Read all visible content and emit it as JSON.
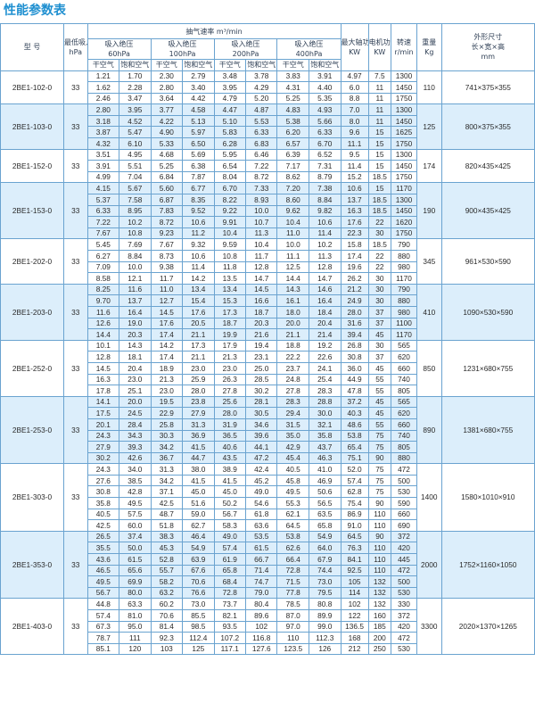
{
  "page_title": "性能参数表",
  "header": {
    "model": "型 号",
    "min_pressure": "最低吸入绝压",
    "min_pressure_unit": "hPa",
    "suction_title": "抽气速率 m³/min",
    "pressure_groups": [
      {
        "label": "吸入绝压",
        "value": "60hPa"
      },
      {
        "label": "吸入绝压",
        "value": "100hPa"
      },
      {
        "label": "吸入绝压",
        "value": "200hPa"
      },
      {
        "label": "吸入绝压",
        "value": "400hPa"
      }
    ],
    "sub_dry": "干空气",
    "sub_sat": "饱和空气",
    "shaft_power": "最大轴功率",
    "shaft_power_unit": "KW",
    "motor_power": "电机功率",
    "motor_power_unit": "KW",
    "speed": "转速",
    "speed_unit": "r/min",
    "weight": "重量",
    "weight_unit": "Kg",
    "dims": "外形尺寸",
    "dims_sub": "长×宽×高",
    "dims_unit": "mm"
  },
  "models": [
    {
      "name": "2BE1-102-0",
      "min_pressure": "33",
      "weight": "110",
      "dims": "741×375×355",
      "rows": [
        [
          "1.21",
          "1.70",
          "2.30",
          "2.79",
          "3.48",
          "3.78",
          "3.83",
          "3.91",
          "4.97",
          "7.5",
          "1300"
        ],
        [
          "1.62",
          "2.28",
          "2.80",
          "3.40",
          "3.95",
          "4.29",
          "4.31",
          "4.40",
          "6.0",
          "11",
          "1450"
        ],
        [
          "2.46",
          "3.47",
          "3.64",
          "4.42",
          "4.79",
          "5.20",
          "5.25",
          "5.35",
          "8.8",
          "11",
          "1750"
        ]
      ]
    },
    {
      "name": "2BE1-103-0",
      "min_pressure": "33",
      "weight": "125",
      "dims": "800×375×355",
      "rows": [
        [
          "2.80",
          "3.95",
          "3.77",
          "4.58",
          "4.47",
          "4.87",
          "4.83",
          "4.93",
          "7.0",
          "11",
          "1300"
        ],
        [
          "3.18",
          "4.52",
          "4.22",
          "5.13",
          "5.10",
          "5.53",
          "5.38",
          "5.66",
          "8.0",
          "11",
          "1450"
        ],
        [
          "3.87",
          "5.47",
          "4.90",
          "5.97",
          "5.83",
          "6.33",
          "6.20",
          "6.33",
          "9.6",
          "15",
          "1625"
        ],
        [
          "4.32",
          "6.10",
          "5.33",
          "6.50",
          "6.28",
          "6.83",
          "6.57",
          "6.70",
          "11.1",
          "15",
          "1750"
        ]
      ]
    },
    {
      "name": "2BE1-152-0",
      "min_pressure": "33",
      "weight": "174",
      "dims": "820×435×425",
      "rows": [
        [
          "3.51",
          "4.95",
          "4.68",
          "5.69",
          "5.95",
          "6.46",
          "6.39",
          "6.52",
          "9.5",
          "15",
          "1300"
        ],
        [
          "3.91",
          "5.51",
          "5.25",
          "6.38",
          "6.54",
          "7.22",
          "7.17",
          "7.31",
          "11.4",
          "15",
          "1450"
        ],
        [
          "4.99",
          "7.04",
          "6.84",
          "7.87",
          "8.04",
          "8.72",
          "8.62",
          "8.79",
          "15.2",
          "18.5",
          "1750"
        ]
      ]
    },
    {
      "name": "2BE1-153-0",
      "min_pressure": "33",
      "weight": "190",
      "dims": "900×435×425",
      "rows": [
        [
          "4.15",
          "5.67",
          "5.60",
          "6.77",
          "6.70",
          "7.33",
          "7.20",
          "7.38",
          "10.6",
          "15",
          "1170"
        ],
        [
          "5.37",
          "7.58",
          "6.87",
          "8.35",
          "8.22",
          "8.93",
          "8.60",
          "8.84",
          "13.7",
          "18.5",
          "1300"
        ],
        [
          "6.33",
          "8.95",
          "7.83",
          "9.52",
          "9.22",
          "10.0",
          "9.62",
          "9.82",
          "16.3",
          "18.5",
          "1450"
        ],
        [
          "7.22",
          "10.2",
          "8.72",
          "10.6",
          "9.91",
          "10.7",
          "10.4",
          "10.6",
          "17.6",
          "22",
          "1620"
        ],
        [
          "7.67",
          "10.8",
          "9.23",
          "11.2",
          "10.4",
          "11.3",
          "11.0",
          "11.4",
          "22.3",
          "30",
          "1750"
        ]
      ]
    },
    {
      "name": "2BE1-202-0",
      "min_pressure": "33",
      "weight": "345",
      "dims": "961×530×590",
      "rows": [
        [
          "5.45",
          "7.69",
          "7.67",
          "9.32",
          "9.59",
          "10.4",
          "10.0",
          "10.2",
          "15.8",
          "18.5",
          "790"
        ],
        [
          "6.27",
          "8.84",
          "8.73",
          "10.6",
          "10.8",
          "11.7",
          "11.1",
          "11.3",
          "17.4",
          "22",
          "880"
        ],
        [
          "7.09",
          "10.0",
          "9.38",
          "11.4",
          "11.8",
          "12.8",
          "12.5",
          "12.8",
          "19.6",
          "22",
          "980"
        ],
        [
          "8.58",
          "12.1",
          "11.7",
          "14.2",
          "13.5",
          "14.7",
          "14.4",
          "14.7",
          "26.2",
          "30",
          "1170"
        ]
      ]
    },
    {
      "name": "2BE1-203-0",
      "min_pressure": "33",
      "weight": "410",
      "dims": "1090×530×590",
      "rows": [
        [
          "8.25",
          "11.6",
          "11.0",
          "13.4",
          "13.4",
          "14.5",
          "14.3",
          "14.6",
          "21.2",
          "30",
          "790"
        ],
        [
          "9.70",
          "13.7",
          "12.7",
          "15.4",
          "15.3",
          "16.6",
          "16.1",
          "16.4",
          "24.9",
          "30",
          "880"
        ],
        [
          "11.6",
          "16.4",
          "14.5",
          "17.6",
          "17.3",
          "18.7",
          "18.0",
          "18.4",
          "28.0",
          "37",
          "980"
        ],
        [
          "12.6",
          "19.0",
          "17.6",
          "20.5",
          "18.7",
          "20.3",
          "20.0",
          "20.4",
          "31.6",
          "37",
          "1100"
        ],
        [
          "14.4",
          "20.3",
          "17.4",
          "21.1",
          "19.9",
          "21.6",
          "21.1",
          "21.4",
          "39.4",
          "45",
          "1170"
        ]
      ]
    },
    {
      "name": "2BE1-252-0",
      "min_pressure": "33",
      "weight": "850",
      "dims": "1231×680×755",
      "rows": [
        [
          "10.1",
          "14.3",
          "14.2",
          "17.3",
          "17.9",
          "19.4",
          "18.8",
          "19.2",
          "26.8",
          "30",
          "565"
        ],
        [
          "12.8",
          "18.1",
          "17.4",
          "21.1",
          "21.3",
          "23.1",
          "22.2",
          "22.6",
          "30.8",
          "37",
          "620"
        ],
        [
          "14.5",
          "20.4",
          "18.9",
          "23.0",
          "23.0",
          "25.0",
          "23.7",
          "24.1",
          "36.0",
          "45",
          "660"
        ],
        [
          "16.3",
          "23.0",
          "21.3",
          "25.9",
          "26.3",
          "28.5",
          "24.8",
          "25.4",
          "44.9",
          "55",
          "740"
        ],
        [
          "17.8",
          "25.1",
          "23.0",
          "28.0",
          "27.8",
          "30.2",
          "27.8",
          "28.3",
          "47.8",
          "55",
          "805"
        ]
      ]
    },
    {
      "name": "2BE1-253-0",
      "min_pressure": "33",
      "weight": "890",
      "dims": "1381×680×755",
      "rows": [
        [
          "14.1",
          "20.0",
          "19.5",
          "23.8",
          "25.6",
          "28.1",
          "28.3",
          "28.8",
          "37.2",
          "45",
          "565"
        ],
        [
          "17.5",
          "24.5",
          "22.9",
          "27.9",
          "28.0",
          "30.5",
          "29.4",
          "30.0",
          "40.3",
          "45",
          "620"
        ],
        [
          "20.1",
          "28.4",
          "25.8",
          "31.3",
          "31.9",
          "34.6",
          "31.5",
          "32.1",
          "48.6",
          "55",
          "660"
        ],
        [
          "24.3",
          "34.3",
          "30.3",
          "36.9",
          "36.5",
          "39.6",
          "35.0",
          "35.8",
          "53.8",
          "75",
          "740"
        ],
        [
          "27.9",
          "39.3",
          "34.2",
          "41.5",
          "40.6",
          "44.1",
          "42.9",
          "43.7",
          "65.4",
          "75",
          "805"
        ],
        [
          "30.2",
          "42.6",
          "36.7",
          "44.7",
          "43.5",
          "47.2",
          "45.4",
          "46.3",
          "75.1",
          "90",
          "880"
        ]
      ]
    },
    {
      "name": "2BE1-303-0",
      "min_pressure": "33",
      "weight": "1400",
      "dims": "1580×1010×910",
      "rows": [
        [
          "24.3",
          "34.0",
          "31.3",
          "38.0",
          "38.9",
          "42.4",
          "40.5",
          "41.0",
          "52.0",
          "75",
          "472"
        ],
        [
          "27.6",
          "38.5",
          "34.2",
          "41.5",
          "41.5",
          "45.2",
          "45.8",
          "46.9",
          "57.4",
          "75",
          "500"
        ],
        [
          "30.8",
          "42.8",
          "37.1",
          "45.0",
          "45.0",
          "49.0",
          "49.5",
          "50.6",
          "62.8",
          "75",
          "530"
        ],
        [
          "35.8",
          "49.5",
          "42.5",
          "51.6",
          "50.2",
          "54.6",
          "55.3",
          "56.5",
          "75.4",
          "90",
          "590"
        ],
        [
          "40.5",
          "57.5",
          "48.7",
          "59.0",
          "56.7",
          "61.8",
          "62.1",
          "63.5",
          "86.9",
          "110",
          "660"
        ],
        [
          "42.5",
          "60.0",
          "51.8",
          "62.7",
          "58.3",
          "63.6",
          "64.5",
          "65.8",
          "91.0",
          "110",
          "690"
        ]
      ]
    },
    {
      "name": "2BE1-353-0",
      "min_pressure": "33",
      "weight": "2000",
      "dims": "1752×1160×1050",
      "rows": [
        [
          "26.5",
          "37.4",
          "38.3",
          "46.4",
          "49.0",
          "53.5",
          "53.8",
          "54.9",
          "64.5",
          "90",
          "372"
        ],
        [
          "35.5",
          "50.0",
          "45.3",
          "54.9",
          "57.4",
          "61.5",
          "62.6",
          "64.0",
          "76.3",
          "110",
          "420"
        ],
        [
          "43.6",
          "61.5",
          "52.8",
          "63.9",
          "61.9",
          "66.7",
          "66.4",
          "67.9",
          "84.1",
          "110",
          "445"
        ],
        [
          "46.5",
          "65.6",
          "55.7",
          "67.6",
          "65.8",
          "71.4",
          "72.8",
          "74.4",
          "92.5",
          "110",
          "472"
        ],
        [
          "49.5",
          "69.9",
          "58.2",
          "70.6",
          "68.4",
          "74.7",
          "71.5",
          "73.0",
          "105",
          "132",
          "500"
        ],
        [
          "56.7",
          "80.0",
          "63.2",
          "76.6",
          "72.8",
          "79.0",
          "77.8",
          "79.5",
          "114",
          "132",
          "530"
        ]
      ]
    },
    {
      "name": "2BE1-403-0",
      "min_pressure": "33",
      "weight": "3300",
      "dims": "2020×1370×1265",
      "rows": [
        [
          "44.8",
          "63.3",
          "60.2",
          "73.0",
          "73.7",
          "80.4",
          "78.5",
          "80.8",
          "102",
          "132",
          "330"
        ],
        [
          "57.4",
          "81.0",
          "70.6",
          "85.5",
          "82.1",
          "89.6",
          "87.0",
          "89.9",
          "122",
          "160",
          "372"
        ],
        [
          "67.3",
          "95.0",
          "81.4",
          "98.5",
          "93.5",
          "102",
          "97.0",
          "99.0",
          "136.5",
          "185",
          "420"
        ],
        [
          "78.7",
          "111",
          "92.3",
          "112.4",
          "107.2",
          "116.8",
          "110",
          "112.3",
          "168",
          "200",
          "472"
        ],
        [
          "85.1",
          "120",
          "103",
          "125",
          "117.1",
          "127.6",
          "123.5",
          "126",
          "212",
          "250",
          "530"
        ]
      ]
    }
  ]
}
